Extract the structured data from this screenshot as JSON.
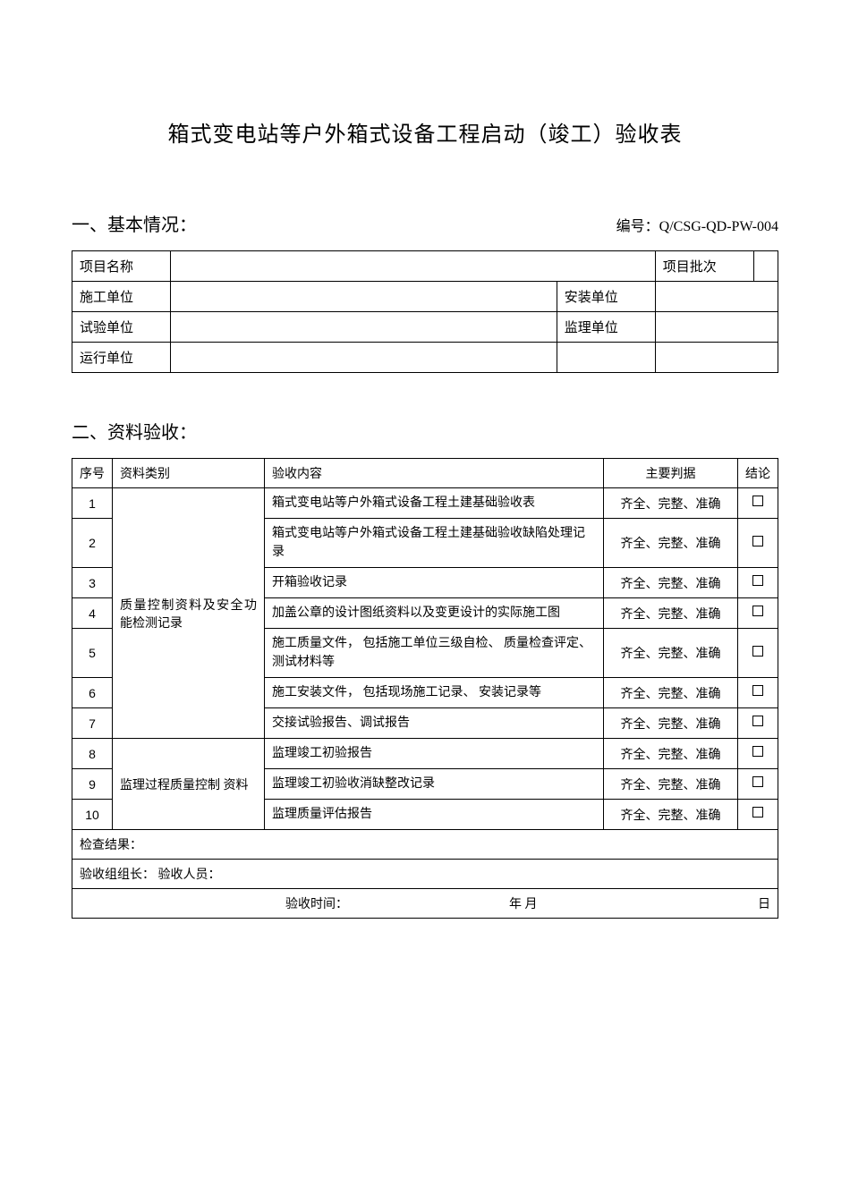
{
  "title": "箱式变电站等户外箱式设备工程启动（竣工）验收表",
  "section1": {
    "label": "一、基本情况：",
    "numberLabel": "编号：Q/CSG-QD-PW-004",
    "fields": {
      "projectName": "项目名称",
      "projectBatch": "项目批次",
      "constructionUnit": "施工单位",
      "installUnit": "安装单位",
      "testUnit": "试验单位",
      "supervisionUnit": "监理单位",
      "operationUnit": "运行单位",
      "projectNameVal": "",
      "projectBatchVal": "",
      "constructionUnitVal": "",
      "installUnitVal": "",
      "testUnitVal": "",
      "supervisionUnitVal": "",
      "operationUnitVal": ""
    }
  },
  "section2": {
    "label": "二、资料验收：",
    "headers": {
      "no": "序号",
      "category": "资料类别",
      "content": "验收内容",
      "judge": "主要判据",
      "result": "结论"
    },
    "category1": "质量控制资料及安全功能检测记录",
    "category2": "监理过程质量控制    资料",
    "judgeText": "齐全、完整、准确",
    "rows": [
      {
        "no": "1",
        "content": "箱式变电站等户外箱式设备工程土建基础验收表"
      },
      {
        "no": "2",
        "content": "箱式变电站等户外箱式设备工程土建基础验收缺陷处理记录"
      },
      {
        "no": "3",
        "content": "开箱验收记录"
      },
      {
        "no": "4",
        "content": "加盖公章的设计图纸资料以及变更设计的实际施工图"
      },
      {
        "no": "5",
        "content": "施工质量文件，   包括施工单位三级自检、   质量检查评定、测试材料等"
      },
      {
        "no": "6",
        "content": "施工安装文件，   包括现场施工记录、   安装记录等"
      },
      {
        "no": "7",
        "content": "交接试验报告、调试报告"
      },
      {
        "no": "8",
        "content": "监理竣工初验报告"
      },
      {
        "no": "9",
        "content": "监理竣工初验收消缺整改记录"
      },
      {
        "no": "10",
        "content": "监理质量评估报告"
      }
    ],
    "checkResultLabel": "检查结果：",
    "signatureLabel": "验收组组长：    验收人员：",
    "timeLabel": "验收时间：",
    "yearMonth": "年   月",
    "day": "日"
  }
}
